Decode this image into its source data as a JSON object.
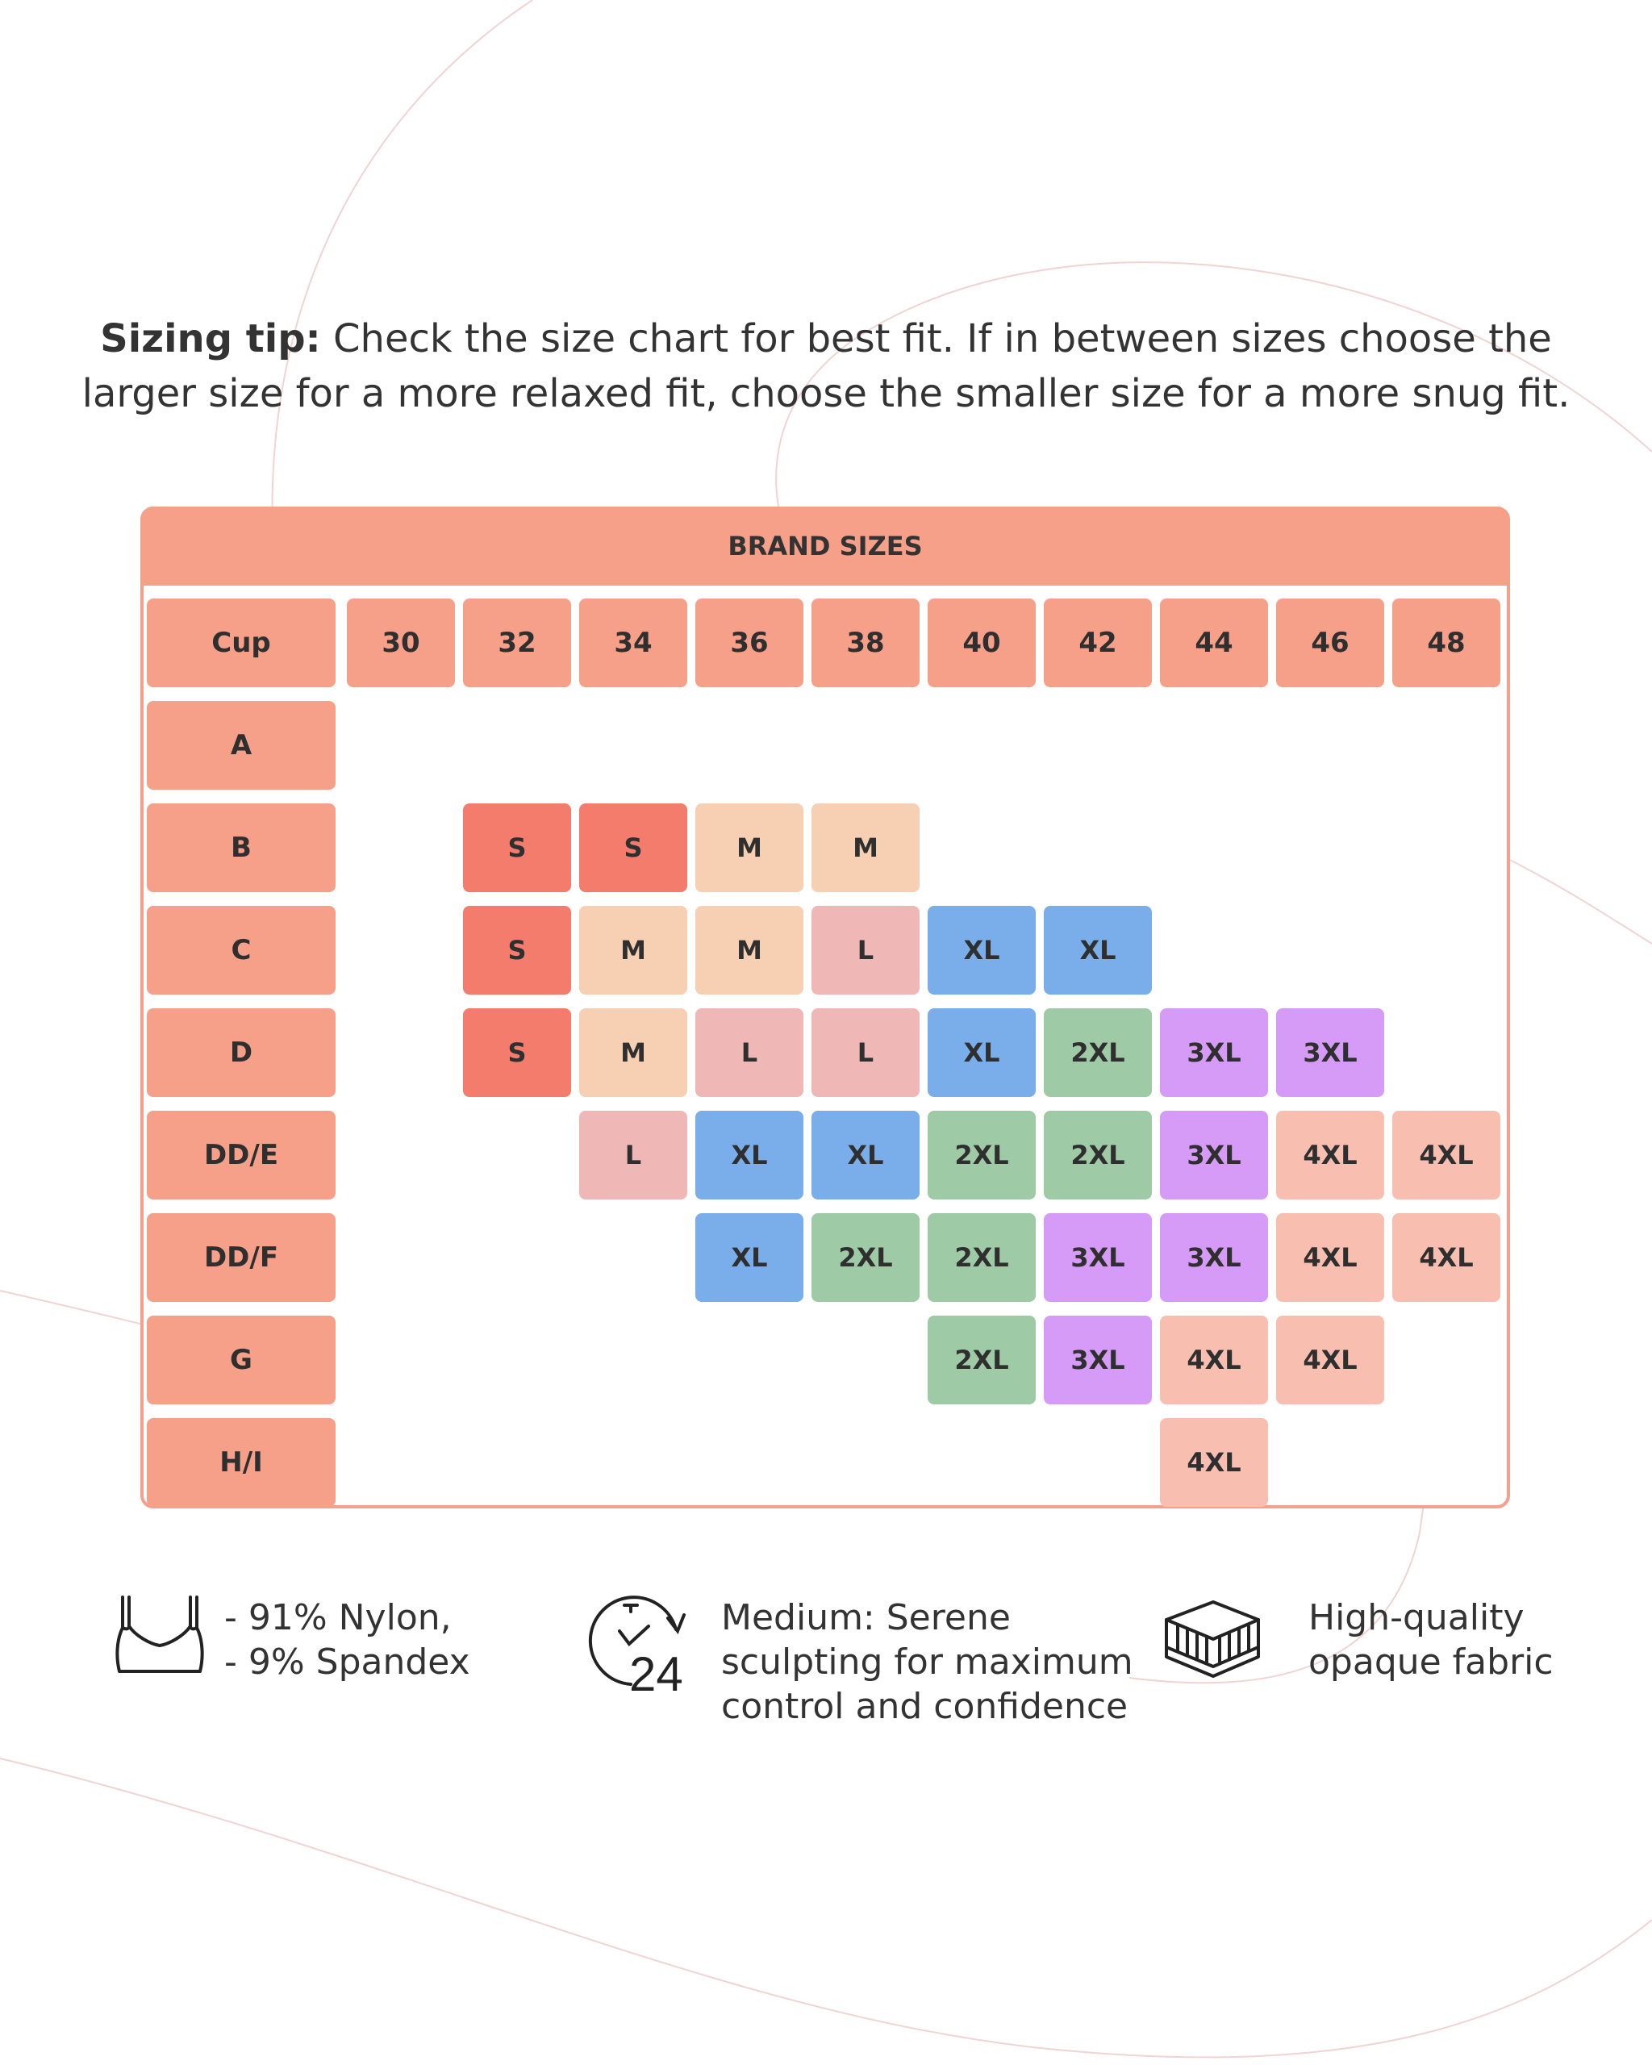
{
  "tip": {
    "bold": "Sizing tip:",
    "text": " Check the size chart for best fit. If in between sizes choose the larger size for a more relaxed fit, choose the smaller size for a more snug fit."
  },
  "table": {
    "title": "BRAND SIZES",
    "cup_label": "Cup",
    "bands": [
      "30",
      "32",
      "34",
      "36",
      "38",
      "40",
      "42",
      "44",
      "46",
      "48"
    ],
    "cups": [
      "A",
      "B",
      "C",
      "D",
      "DD/E",
      "DD/F",
      "G",
      "H/I"
    ],
    "grid": [
      [
        "",
        "",
        "",
        "",
        "",
        "",
        "",
        "",
        "",
        ""
      ],
      [
        "",
        "S",
        "S",
        "M",
        "M",
        "",
        "",
        "",
        "",
        ""
      ],
      [
        "",
        "S",
        "M",
        "M",
        "L",
        "XL",
        "XL",
        "",
        "",
        ""
      ],
      [
        "",
        "S",
        "M",
        "L",
        "L",
        "XL",
        "2XL",
        "3XL",
        "3XL",
        ""
      ],
      [
        "",
        "",
        "L",
        "XL",
        "XL",
        "2XL",
        "2XL",
        "3XL",
        "4XL",
        "4XL"
      ],
      [
        "",
        "",
        "",
        "XL",
        "2XL",
        "2XL",
        "3XL",
        "3XL",
        "4XL",
        "4XL"
      ],
      [
        "",
        "",
        "",
        "",
        "",
        "2XL",
        "3XL",
        "4XL",
        "4XL",
        ""
      ],
      [
        "",
        "",
        "",
        "",
        "",
        "",
        "",
        "4XL",
        "",
        ""
      ]
    ]
  },
  "colors": {
    "header": "#f6a08a",
    "border": "#f5a08f",
    "S": "#f47c6c",
    "M": "#f7cfb2",
    "L": "#efb8b6",
    "XL": "#7aaeea",
    "2XL": "#9ecaa6",
    "3XL": "#d59bf6",
    "4XL": "#f8bfb0"
  },
  "features": [
    {
      "icon": "bra-icon",
      "lines": [
        "- 91% Nylon,",
        "- 9% Spandex"
      ]
    },
    {
      "icon": "clock-24-icon",
      "lines": [
        "Medium: Serene",
        "sculpting for maximum",
        "control and confidence"
      ]
    },
    {
      "icon": "fabric-layers-icon",
      "lines": [
        "High-quality",
        "opaque fabric"
      ]
    }
  ],
  "clock_label": "24"
}
